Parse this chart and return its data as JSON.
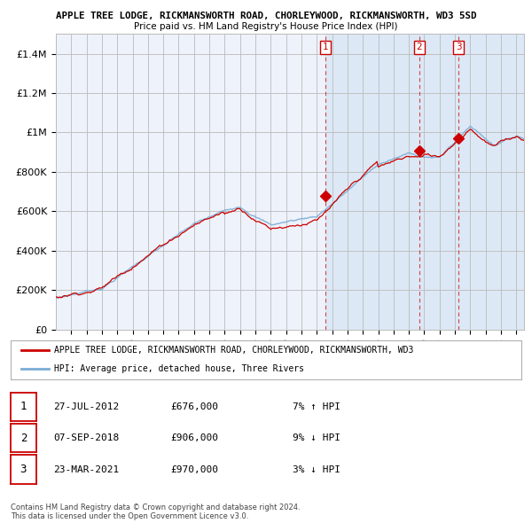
{
  "title_line1": "APPLE TREE LODGE, RICKMANSWORTH ROAD, CHORLEYWOOD, RICKMANSWORTH, WD3 5SD",
  "title_line2": "Price paid vs. HM Land Registry's House Price Index (HPI)",
  "ylim": [
    0,
    1500000
  ],
  "yticks": [
    0,
    200000,
    400000,
    600000,
    800000,
    1000000,
    1200000,
    1400000
  ],
  "ytick_labels": [
    "£0",
    "£200K",
    "£400K",
    "£600K",
    "£800K",
    "£1M",
    "£1.2M",
    "£1.4M"
  ],
  "background_color": "#ffffff",
  "plot_bg_color": "#eef2fa",
  "plot_bg_color2": "#dce8f5",
  "grid_color": "#cccccc",
  "red_color": "#cc0000",
  "blue_color": "#7aadd4",
  "sale1_date": "27-JUL-2012",
  "sale1_price": 676000,
  "sale1_hpi": "7% ↑ HPI",
  "sale2_date": "07-SEP-2018",
  "sale2_price": 906000,
  "sale2_hpi": "9% ↓ HPI",
  "sale3_date": "23-MAR-2021",
  "sale3_price": 970000,
  "sale3_hpi": "3% ↓ HPI",
  "legend_label_red": "APPLE TREE LODGE, RICKMANSWORTH ROAD, CHORLEYWOOD, RICKMANSWORTH, WD3",
  "legend_label_blue": "HPI: Average price, detached house, Three Rivers",
  "footer": "Contains HM Land Registry data © Crown copyright and database right 2024.\nThis data is licensed under the Open Government Licence v3.0.",
  "sale1_x": 2012.57,
  "sale2_x": 2018.68,
  "sale3_x": 2021.23,
  "xmin": 1995.0,
  "xmax": 2025.5
}
